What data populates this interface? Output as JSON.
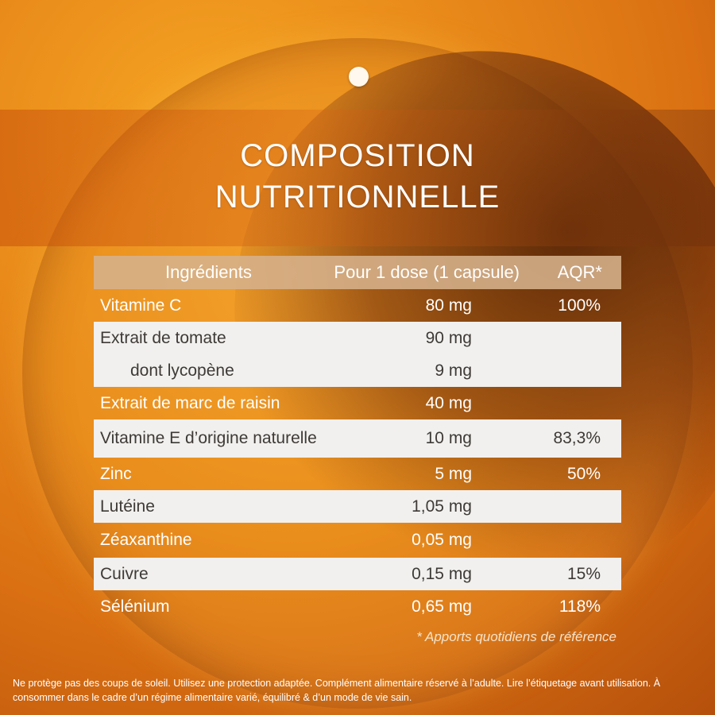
{
  "title_line1": "COMPOSITION",
  "title_line2": "NUTRITIONNELLE",
  "table": {
    "headers": {
      "ingredient": "Ingrédients",
      "dose": "Pour 1 dose (1 capsule)",
      "aqr": "AQR*"
    },
    "rows": [
      {
        "name": "Vitamine C",
        "dose": "80 mg",
        "aqr": "100%"
      },
      {
        "name": "Extrait de tomate",
        "dose": "90 mg",
        "aqr": "",
        "sub_name": "dont lycopène",
        "sub_dose": "9 mg"
      },
      {
        "name": "Extrait de marc de raisin",
        "dose": "40 mg",
        "aqr": ""
      },
      {
        "name": "Vitamine E d’origine naturelle",
        "dose": "10 mg",
        "aqr": "83,3%"
      },
      {
        "name": "Zinc",
        "dose": "5 mg",
        "aqr": "50%"
      },
      {
        "name": "Lutéine",
        "dose": "1,05 mg",
        "aqr": ""
      },
      {
        "name": "Zéaxanthine",
        "dose": "0,05 mg",
        "aqr": ""
      },
      {
        "name": "Cuivre",
        "dose": "0,15 mg",
        "aqr": "15%"
      },
      {
        "name": "Sélénium",
        "dose": "0,65 mg",
        "aqr": "118%"
      }
    ]
  },
  "footnote": "* Apports quotidiens de référence",
  "disclaimer": "Ne protège pas des coups de soleil. Utilisez une protection adaptée. Complément alimentaire réservé à l’adulte. Lire l’étiquetage avant utilisation. À consommer dans le cadre d’un régime alimentaire varié, équilibré & d’un mode de vie sain."
}
